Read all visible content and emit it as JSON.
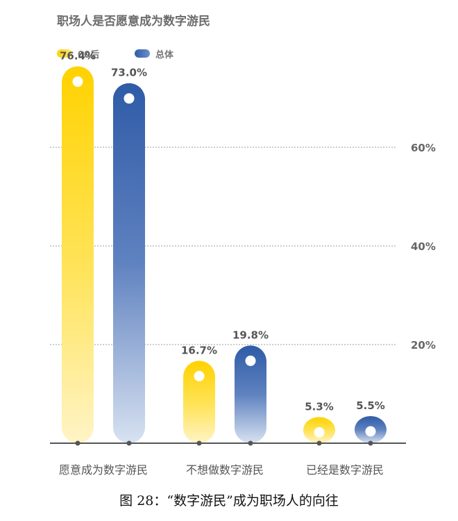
{
  "chart_data": {
    "type": "bar",
    "title": "职场人是否愿意成为数字游民",
    "categories": [
      "愿意成为数字游民",
      "不想做数字游民",
      "已经是数字游民"
    ],
    "series": [
      {
        "name": "00后",
        "values": [
          76.4,
          16.7,
          5.3
        ],
        "labels": [
          "76.4%",
          "16.7%",
          "5.3%"
        ],
        "color": "#FFD200"
      },
      {
        "name": "总体",
        "values": [
          73.0,
          19.8,
          5.5
        ],
        "labels": [
          "73.0%",
          "19.8%",
          "5.5%"
        ],
        "color": "#2F5BA7"
      }
    ],
    "yticks": [
      20,
      40,
      60
    ],
    "ytick_labels": [
      "20%",
      "40%",
      "60%"
    ],
    "ylim": [
      0,
      80
    ],
    "grid": true,
    "legend_position": "top-left",
    "ylabel_position": "right"
  },
  "caption": "图 28：“数字游民”成为职场人的向往"
}
